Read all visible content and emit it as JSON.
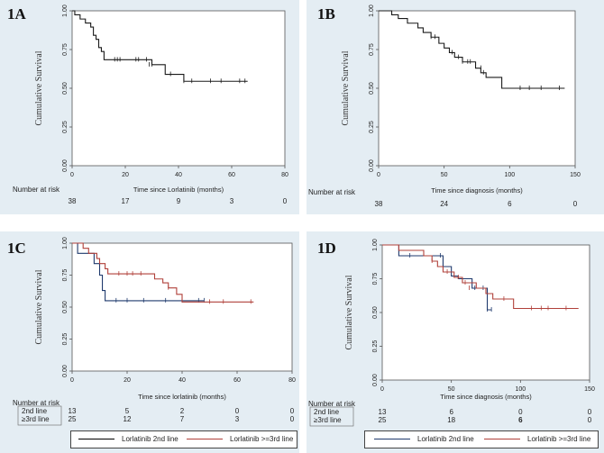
{
  "panels": [
    {
      "id": "1A",
      "label": "1A"
    },
    {
      "id": "1B",
      "label": "1B"
    },
    {
      "id": "1C",
      "label": "1C"
    },
    {
      "id": "1D",
      "label": "1D"
    }
  ],
  "legend": {
    "line_2nd": "Lorlatinib 2nd line",
    "line_3rd": "Lorlatinib >=3rd line"
  },
  "colors": {
    "black": "#1a1a1a",
    "navy": "#1f3a6d",
    "red": "#b0403a",
    "panel_bg": "#e4edf3"
  },
  "chart_data": [
    {
      "id": "1A",
      "type": "line",
      "xlabel": "Time since Lorlatinib (months)",
      "ylabel": "Cumulative  Survival",
      "xlim": [
        0,
        80
      ],
      "ylim": [
        0,
        1
      ],
      "xticks": [
        "0",
        "20",
        "40",
        "60",
        "80"
      ],
      "yticks": [
        "0.00",
        "0.25",
        "0.50",
        "0.75",
        "1.00"
      ],
      "series": [
        {
          "color": "#1a1a1a",
          "steps": [
            [
              0,
              1.0
            ],
            [
              1,
              0.974
            ],
            [
              3,
              0.947
            ],
            [
              5,
              0.921
            ],
            [
              7,
              0.895
            ],
            [
              8,
              0.842
            ],
            [
              9,
              0.816
            ],
            [
              10,
              0.763
            ],
            [
              11,
              0.737
            ],
            [
              12,
              0.684
            ],
            [
              30,
              0.652
            ],
            [
              35,
              0.59
            ],
            [
              42,
              0.545
            ],
            [
              66,
              0.545
            ]
          ],
          "censors": [
            [
              16,
              0.684
            ],
            [
              17,
              0.684
            ],
            [
              18,
              0.684
            ],
            [
              24,
              0.684
            ],
            [
              25,
              0.684
            ],
            [
              28,
              0.684
            ],
            [
              29,
              0.652
            ],
            [
              30,
              0.652
            ],
            [
              37,
              0.59
            ],
            [
              42,
              0.545
            ],
            [
              45,
              0.545
            ],
            [
              52,
              0.545
            ],
            [
              56,
              0.545
            ],
            [
              63,
              0.545
            ],
            [
              65,
              0.545
            ]
          ]
        }
      ],
      "risk_title": "Number at risk",
      "risk_rows": [
        {
          "label": "",
          "values": [
            "38",
            "17",
            "9",
            "3",
            "0"
          ]
        }
      ]
    },
    {
      "id": "1B",
      "type": "line",
      "xlabel": "Time since diagnosis (months)",
      "ylabel": "Cumulative  Survival",
      "xlim": [
        0,
        150
      ],
      "ylim": [
        0,
        1
      ],
      "xticks": [
        "0",
        "50",
        "100",
        "150"
      ],
      "yticks": [
        "0.00",
        "0.25",
        "0.50",
        "0.75",
        "1.00"
      ],
      "series": [
        {
          "color": "#1a1a1a",
          "steps": [
            [
              0,
              1.0
            ],
            [
              10,
              0.974
            ],
            [
              15,
              0.95
            ],
            [
              22,
              0.92
            ],
            [
              30,
              0.89
            ],
            [
              34,
              0.86
            ],
            [
              40,
              0.83
            ],
            [
              46,
              0.79
            ],
            [
              50,
              0.76
            ],
            [
              54,
              0.73
            ],
            [
              58,
              0.7
            ],
            [
              64,
              0.67
            ],
            [
              74,
              0.63
            ],
            [
              78,
              0.6
            ],
            [
              82,
              0.57
            ],
            [
              94,
              0.5
            ],
            [
              142,
              0.5
            ]
          ],
          "censors": [
            [
              40,
              0.83
            ],
            [
              43,
              0.83
            ],
            [
              56,
              0.73
            ],
            [
              61,
              0.7
            ],
            [
              64,
              0.67
            ],
            [
              68,
              0.67
            ],
            [
              70,
              0.67
            ],
            [
              78,
              0.63
            ],
            [
              80,
              0.6
            ],
            [
              108,
              0.5
            ],
            [
              115,
              0.5
            ],
            [
              124,
              0.5
            ],
            [
              138,
              0.5
            ]
          ]
        }
      ],
      "risk_title": "Number at risk",
      "risk_rows": [
        {
          "label": "",
          "values": [
            "38",
            "24",
            "6",
            "0"
          ]
        }
      ]
    },
    {
      "id": "1C",
      "type": "line",
      "xlabel": "Time since lorlatinib    (months)",
      "ylabel": "Cumulative  Survival",
      "xlim": [
        0,
        80
      ],
      "ylim": [
        0,
        1
      ],
      "xticks": [
        "0",
        "20",
        "40",
        "60",
        "80"
      ],
      "yticks": [
        "0.00",
        "0.25",
        "0.50",
        "0.75",
        "1.00"
      ],
      "series": [
        {
          "name": "Lorlatinib 2nd line",
          "color": "#1f3a6d",
          "steps": [
            [
              0,
              1.0
            ],
            [
              2,
              0.92
            ],
            [
              7,
              0.92
            ],
            [
              8,
              0.84
            ],
            [
              10,
              0.75
            ],
            [
              11,
              0.63
            ],
            [
              12,
              0.55
            ],
            [
              48,
              0.55
            ]
          ],
          "censors": [
            [
              16,
              0.55
            ],
            [
              20,
              0.55
            ],
            [
              26,
              0.55
            ],
            [
              34,
              0.55
            ],
            [
              40,
              0.55
            ],
            [
              46,
              0.55
            ],
            [
              48,
              0.55
            ]
          ]
        },
        {
          "name": "Lorlatinib >=3rd line",
          "color": "#b0403a",
          "steps": [
            [
              0,
              1.0
            ],
            [
              4,
              0.96
            ],
            [
              6,
              0.92
            ],
            [
              9,
              0.88
            ],
            [
              10,
              0.84
            ],
            [
              12,
              0.8
            ],
            [
              13,
              0.76
            ],
            [
              30,
              0.72
            ],
            [
              33,
              0.69
            ],
            [
              35,
              0.65
            ],
            [
              38,
              0.6
            ],
            [
              40,
              0.54
            ],
            [
              66,
              0.54
            ]
          ],
          "censors": [
            [
              17,
              0.76
            ],
            [
              20,
              0.76
            ],
            [
              22,
              0.76
            ],
            [
              25,
              0.76
            ],
            [
              35,
              0.65
            ],
            [
              50,
              0.54
            ],
            [
              55,
              0.54
            ],
            [
              65,
              0.54
            ]
          ]
        }
      ],
      "risk_title": "Number at risk",
      "risk_rows": [
        {
          "label": "2nd line",
          "values": [
            "13",
            "5",
            "2",
            "0",
            "0"
          ]
        },
        {
          "label": "≥3rd line",
          "values": [
            "25",
            "12",
            "7",
            "3",
            "0"
          ]
        }
      ]
    },
    {
      "id": "1D",
      "type": "line",
      "xlabel": "Time since diagnosis (months)",
      "ylabel": "Cumulative  Survival",
      "xlim": [
        0,
        150
      ],
      "ylim": [
        0,
        1
      ],
      "xticks": [
        "0",
        "50",
        "100",
        "150"
      ],
      "yticks": [
        "0.00",
        "0.25",
        "0.50",
        "0.75",
        "1.00"
      ],
      "series": [
        {
          "name": "Lorlatinib 2nd line",
          "color": "#1f3a6d",
          "steps": [
            [
              0,
              1.0
            ],
            [
              12,
              0.92
            ],
            [
              40,
              0.92
            ],
            [
              44,
              0.84
            ],
            [
              50,
              0.77
            ],
            [
              55,
              0.75
            ],
            [
              65,
              0.68
            ],
            [
              75,
              0.68
            ],
            [
              76,
              0.52
            ],
            [
              79,
              0.52
            ]
          ],
          "censors": [
            [
              20,
              0.92
            ],
            [
              42,
              0.92
            ],
            [
              67,
              0.68
            ],
            [
              73,
              0.68
            ],
            [
              76,
              0.52
            ],
            [
              79,
              0.52
            ]
          ]
        },
        {
          "name": "Lorlatinib >=3rd line",
          "color": "#b0403a",
          "steps": [
            [
              0,
              1.0
            ],
            [
              12,
              0.96
            ],
            [
              30,
              0.92
            ],
            [
              36,
              0.88
            ],
            [
              40,
              0.84
            ],
            [
              44,
              0.8
            ],
            [
              52,
              0.76
            ],
            [
              58,
              0.72
            ],
            [
              68,
              0.68
            ],
            [
              75,
              0.64
            ],
            [
              80,
              0.6
            ],
            [
              95,
              0.53
            ],
            [
              142,
              0.53
            ]
          ],
          "censors": [
            [
              36,
              0.88
            ],
            [
              47,
              0.8
            ],
            [
              55,
              0.76
            ],
            [
              60,
              0.72
            ],
            [
              63,
              0.68
            ],
            [
              88,
              0.6
            ],
            [
              108,
              0.53
            ],
            [
              115,
              0.53
            ],
            [
              120,
              0.53
            ],
            [
              133,
              0.53
            ]
          ]
        }
      ],
      "risk_title": "Number at risk",
      "risk_rows": [
        {
          "label": "2nd line",
          "values": [
            "13",
            "6",
            "0",
            "0"
          ]
        },
        {
          "label": "≥3rd line",
          "values": [
            "25",
            "18",
            "6",
            "0"
          ]
        }
      ]
    }
  ]
}
